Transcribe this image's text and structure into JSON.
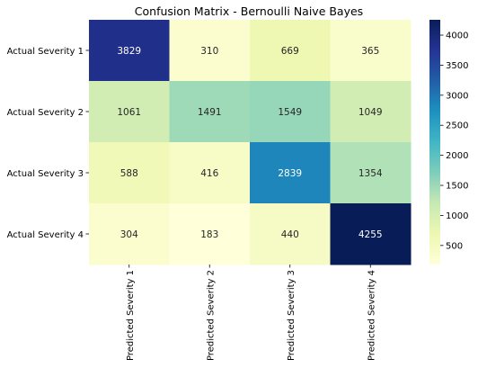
{
  "chart_data": {
    "type": "heatmap",
    "title": "Confusion Matrix - Bernoulli Naive Bayes",
    "row_labels": [
      "Actual Severity 1",
      "Actual Severity 2",
      "Actual Severity 3",
      "Actual Severity 4"
    ],
    "col_labels": [
      "Predicted Severity 1",
      "Predicted Severity 2",
      "Predicted Severity 3",
      "Predicted Severity 4"
    ],
    "values": [
      [
        3829,
        310,
        669,
        365
      ],
      [
        1061,
        1491,
        1549,
        1049
      ],
      [
        588,
        416,
        2839,
        1354
      ],
      [
        304,
        183,
        440,
        4255
      ]
    ],
    "colormap": "YlGnBu",
    "colorbar": {
      "min": 183,
      "max": 4255,
      "ticks": [
        500,
        1000,
        1500,
        2000,
        2500,
        3000,
        3500,
        4000
      ]
    },
    "annot_colors": {
      "dark_text": "#262626",
      "light_text": "#ffffff"
    }
  }
}
